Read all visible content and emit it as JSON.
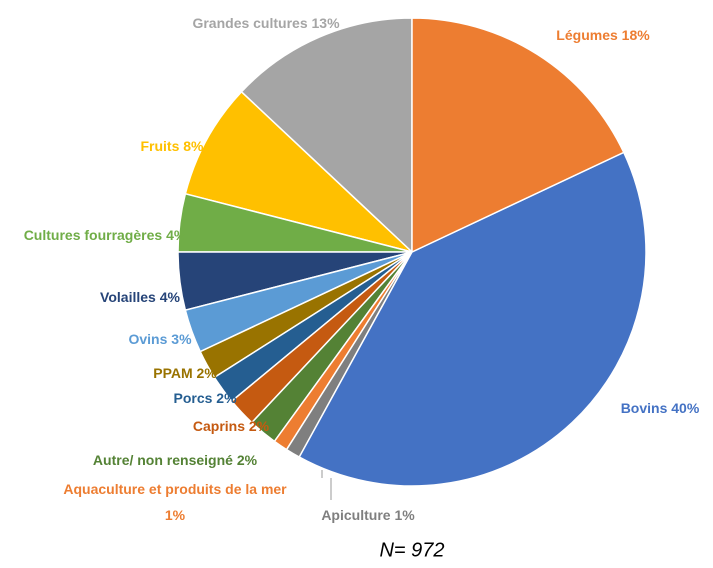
{
  "chart_data": {
    "type": "pie",
    "categories": [
      "Légumes",
      "Bovins",
      "Apiculture",
      "Aquaculture et produits de la mer",
      "Autre/ non renseigné",
      "Caprins",
      "Porcs",
      "PPAM",
      "Ovins",
      "Volailles",
      "Cultures fourragères",
      "Fruits",
      "Grandes cultures"
    ],
    "values": [
      18,
      40,
      1,
      1,
      2,
      2,
      2,
      2,
      3,
      4,
      4,
      8,
      13
    ],
    "value_labels": [
      "18%",
      "40%",
      "1%",
      "1%",
      "2%",
      "2%",
      "2%",
      "2%",
      "3%",
      "4%",
      "4%",
      "8%",
      "13%"
    ],
    "colors": [
      "#ED7D31",
      "#4472C4",
      "#7F7F7F",
      "#ED7D31",
      "#548235",
      "#C55A11",
      "#255E91",
      "#997300",
      "#5B9BD5",
      "#264478",
      "#70AD47",
      "#FFC000",
      "#A5A5A5"
    ],
    "note": "N= 972"
  }
}
